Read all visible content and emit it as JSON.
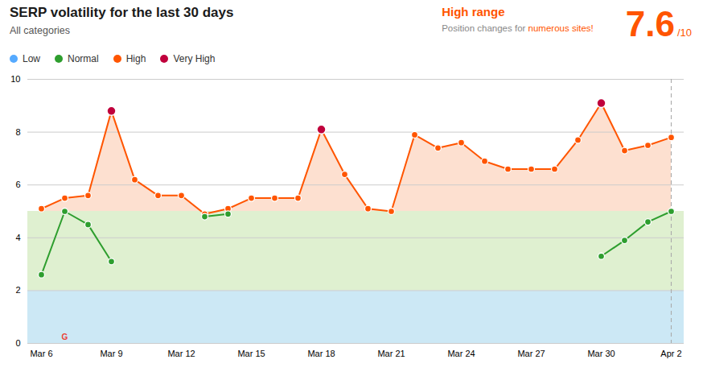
{
  "chart_data": {
    "type": "line",
    "title": "SERP volatility for the last 30 days",
    "subtitle": "All categories",
    "range_label": "High range",
    "range_description": "Position changes for ",
    "range_description_highlight": "numerous sites!",
    "score": 7.6,
    "score_suffix": "/10",
    "categories": [
      "Mar 6",
      null,
      null,
      "Mar 9",
      null,
      null,
      "Mar 12",
      null,
      null,
      "Mar 15",
      null,
      null,
      "Mar 18",
      null,
      null,
      "Mar 21",
      null,
      null,
      "Mar 24",
      null,
      null,
      "Mar 27",
      null,
      null,
      "Mar 30",
      null,
      null,
      "Apr 2"
    ],
    "bands": [
      {
        "name": "Low",
        "lo": 0,
        "hi": 2,
        "color": "#cce8f5",
        "legend_color": "#55AAFF"
      },
      {
        "lo": 2,
        "hi": 5,
        "color": "#dff0d0"
      }
    ],
    "series": [
      {
        "name": "Normal",
        "color": "#2E9E2E",
        "values": [
          2.6,
          5.0,
          4.5,
          3.1,
          null,
          null,
          null,
          4.8,
          4.9,
          null,
          null,
          null,
          null,
          null,
          null,
          null,
          null,
          null,
          null,
          null,
          null,
          null,
          null,
          null,
          3.3,
          3.9,
          4.6,
          5.0
        ]
      },
      {
        "name": "High",
        "color": "#FF5500",
        "fill_above": 5,
        "fill_color": "#fde0d0",
        "values": [
          5.1,
          5.5,
          5.6,
          8.8,
          6.2,
          5.6,
          5.6,
          4.9,
          5.1,
          5.5,
          5.5,
          5.5,
          8.1,
          6.4,
          5.1,
          5.0,
          7.9,
          7.4,
          7.6,
          6.9,
          6.6,
          6.6,
          6.6,
          7.7,
          9.1,
          7.3,
          7.5,
          7.8
        ]
      },
      {
        "name": "Very High",
        "type": "scatter",
        "color": "#C0003C",
        "values": [
          null,
          null,
          null,
          8.8,
          null,
          null,
          null,
          null,
          null,
          null,
          null,
          null,
          8.1,
          null,
          null,
          null,
          null,
          null,
          null,
          null,
          null,
          null,
          null,
          null,
          9.1,
          null,
          null,
          null
        ]
      }
    ],
    "vlines": [
      {
        "x": 27,
        "color": "#aaaaaa",
        "line_style": "dashed"
      }
    ],
    "annotations": [
      {
        "text": "G",
        "x": 1,
        "y": 0,
        "color": "#EA4335"
      }
    ],
    "ylim": [
      0,
      10
    ],
    "yticks": [
      0,
      2,
      4,
      6,
      8,
      10
    ],
    "grid": true,
    "legend": "top-left"
  }
}
